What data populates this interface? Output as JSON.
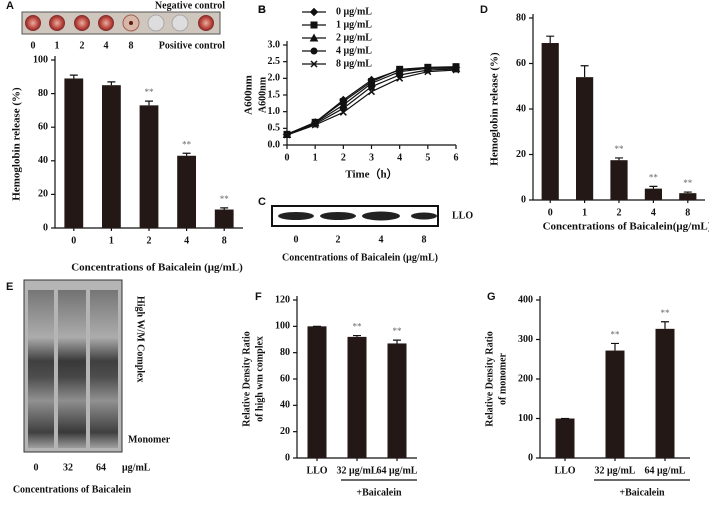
{
  "chart_data": [
    {
      "type": "bar",
      "panel": "A",
      "ylabel": "Hemoglobin release (%)",
      "xlabel": "Concentrations of Baicalein (μg/mL)",
      "categories": [
        "0",
        "1",
        "2",
        "4",
        "8"
      ],
      "values": [
        89,
        85,
        73,
        43,
        11
      ],
      "errors": [
        2,
        2,
        2.5,
        1.5,
        1
      ],
      "value_annotations": [
        null,
        null,
        "**",
        "**",
        "**"
      ],
      "color": "#231815",
      "ylim": [
        0,
        100
      ],
      "yticks": [
        0,
        20,
        40,
        60,
        80,
        100
      ]
    },
    {
      "type": "line",
      "panel": "B",
      "xlabel": "Time（h）",
      "ylabel": "A600nm",
      "x": [
        0,
        1,
        2,
        3,
        4,
        5,
        6
      ],
      "xlim": [
        0,
        6
      ],
      "xticks": [
        0,
        1,
        2,
        3,
        4,
        5,
        6
      ],
      "ylim": [
        0,
        3
      ],
      "yticks": [
        {
          "value": 0,
          "label": "0.0"
        },
        {
          "value": 0.5,
          "label": "0.5"
        },
        {
          "value": 1,
          "label": "1.0"
        },
        {
          "value": 1.5,
          "label": "1.5"
        },
        {
          "value": 2,
          "label": "2.0"
        },
        {
          "value": 2.5,
          "label": "2.5"
        },
        {
          "value": 3,
          "label": "3.0"
        }
      ],
      "series": [
        {
          "name": "0 μg/mL",
          "color": "#111111",
          "marker": "diamond",
          "values": [
            0.32,
            0.68,
            1.35,
            1.95,
            2.25,
            2.3,
            2.33
          ]
        },
        {
          "name": "1 μg/mL",
          "color": "#111111",
          "marker": "square",
          "values": [
            0.32,
            0.68,
            1.3,
            1.9,
            2.27,
            2.33,
            2.35
          ]
        },
        {
          "name": "2 μg/mL",
          "color": "#111111",
          "marker": "triangle",
          "values": [
            0.32,
            0.66,
            1.2,
            1.85,
            2.2,
            2.3,
            2.3
          ]
        },
        {
          "name": "4 μg/mL",
          "color": "#111111",
          "marker": "circle",
          "values": [
            0.31,
            0.63,
            1.1,
            1.75,
            2.1,
            2.25,
            2.28
          ]
        },
        {
          "name": "8 μg/mL",
          "color": "#111111",
          "marker": "cross",
          "values": [
            0.3,
            0.6,
            0.98,
            1.6,
            2.0,
            2.2,
            2.25
          ]
        }
      ]
    },
    {
      "type": "bar",
      "panel": "D",
      "ylabel": "Hemoglobin release (%)",
      "xlabel": "Concentrations of Baicalein(μg/mL)",
      "categories": [
        "0",
        "1",
        "2",
        "4",
        "8"
      ],
      "values": [
        69,
        54,
        17.5,
        5,
        3
      ],
      "errors": [
        3,
        5,
        1,
        1,
        0.5
      ],
      "value_annotations": [
        null,
        null,
        "**",
        "**",
        "**"
      ],
      "color": "#231815",
      "ylim": [
        0,
        80
      ],
      "yticks": [
        0,
        20,
        40,
        60,
        80
      ]
    },
    {
      "type": "bar",
      "panel": "F",
      "ylabel": [
        "Relative Density Ratio",
        "of high wm complex"
      ],
      "group_label": "+Baicalein",
      "categories": [
        "LLO",
        "32 μg/mL",
        "64 μg/mL"
      ],
      "values": [
        100,
        92,
        87
      ],
      "errors": [
        0,
        1,
        2.5
      ],
      "value_annotations": [
        null,
        "**",
        "**"
      ],
      "color": "#231815",
      "ylim": [
        0,
        120
      ],
      "yticks": [
        0,
        20,
        40,
        60,
        80,
        100,
        120
      ]
    },
    {
      "type": "bar",
      "panel": "G",
      "ylabel": [
        "Relative Density Ratio",
        "of monomer"
      ],
      "group_label": "+Baicalein",
      "categories": [
        "LLO",
        "32 μg/mL",
        "64 μg/mL"
      ],
      "values": [
        100,
        272,
        327
      ],
      "errors": [
        0,
        18,
        18
      ],
      "value_annotations": [
        null,
        "**",
        "**"
      ],
      "color": "#231815",
      "ylim": [
        0,
        400
      ],
      "yticks": [
        0,
        100,
        200,
        300,
        400
      ]
    }
  ],
  "plate": {
    "labels": [
      "0",
      "1",
      "2",
      "4",
      "8"
    ],
    "negative_label": "Negative control",
    "positive_label": "Positive control"
  },
  "blot_c": {
    "panel": "C",
    "band_label": "LLO",
    "lanes": [
      "0",
      "2",
      "4",
      "8"
    ],
    "xlabel": "Concentrations of Baicalein (μg/mL)"
  },
  "blot_e": {
    "panel": "E",
    "complex_label": "High W/M Complex",
    "monomer_label": "Monomer",
    "lanes": [
      "0",
      "32",
      "64"
    ],
    "unit": "μg/mL",
    "xlabel": "Concentrations of Baicalein"
  }
}
